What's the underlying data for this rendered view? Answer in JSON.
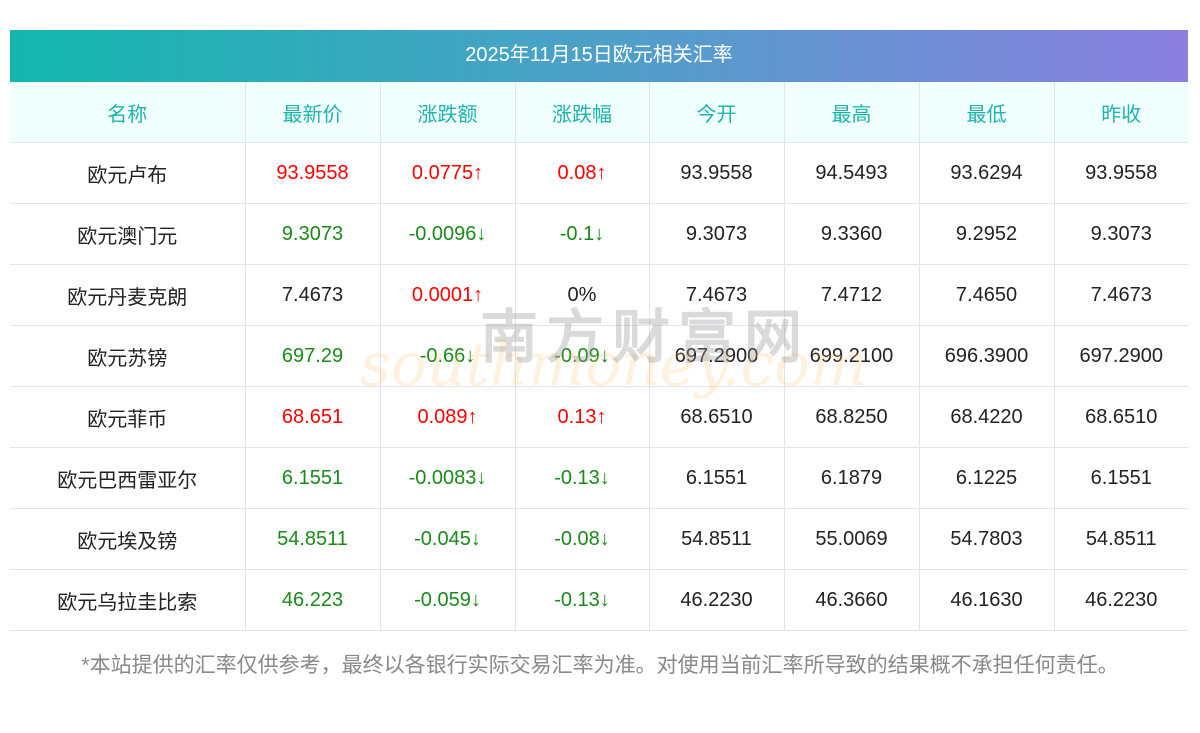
{
  "title": "2025年11月15日欧元相关汇率",
  "headers": [
    "名称",
    "最新价",
    "涨跌额",
    "涨跌幅",
    "今开",
    "最高",
    "最低",
    "昨收"
  ],
  "rows": [
    {
      "name": "欧元卢布",
      "latest": "93.9558",
      "change": "0.0775↑",
      "pct": "0.08↑",
      "open": "93.9558",
      "high": "94.5493",
      "low": "93.6294",
      "prev": "93.9558",
      "dir": "up"
    },
    {
      "name": "欧元澳门元",
      "latest": "9.3073",
      "change": "-0.0096↓",
      "pct": "-0.1↓",
      "open": "9.3073",
      "high": "9.3360",
      "low": "9.2952",
      "prev": "9.3073",
      "dir": "down"
    },
    {
      "name": "欧元丹麦克朗",
      "latest": "7.4673",
      "change": "0.0001↑",
      "pct": "0%",
      "open": "7.4673",
      "high": "7.4712",
      "low": "7.4650",
      "prev": "7.4673",
      "dir": "flat"
    },
    {
      "name": "欧元苏镑",
      "latest": "697.29",
      "change": "-0.66↓",
      "pct": "-0.09↓",
      "open": "697.2900",
      "high": "699.2100",
      "low": "696.3900",
      "prev": "697.2900",
      "dir": "down"
    },
    {
      "name": "欧元菲币",
      "latest": "68.651",
      "change": "0.089↑",
      "pct": "0.13↑",
      "open": "68.6510",
      "high": "68.8250",
      "low": "68.4220",
      "prev": "68.6510",
      "dir": "up"
    },
    {
      "name": "欧元巴西雷亚尔",
      "latest": "6.1551",
      "change": "-0.0083↓",
      "pct": "-0.13↓",
      "open": "6.1551",
      "high": "6.1879",
      "low": "6.1225",
      "prev": "6.1551",
      "dir": "down"
    },
    {
      "name": "欧元埃及镑",
      "latest": "54.8511",
      "change": "-0.045↓",
      "pct": "-0.08↓",
      "open": "54.8511",
      "high": "55.0069",
      "low": "54.7803",
      "prev": "54.8511",
      "dir": "down"
    },
    {
      "name": "欧元乌拉圭比索",
      "latest": "46.223",
      "change": "-0.059↓",
      "pct": "-0.13↓",
      "open": "46.2230",
      "high": "46.3660",
      "low": "46.1630",
      "prev": "46.2230",
      "dir": "down"
    }
  ],
  "watermark": {
    "cn": "南方财富网",
    "en": "southmoney.com"
  },
  "disclaimer": "*本站提供的汇率仅供参考，最终以各银行实际交易汇率为准。对使用当前汇率所导致的结果概不承担任何责任。"
}
